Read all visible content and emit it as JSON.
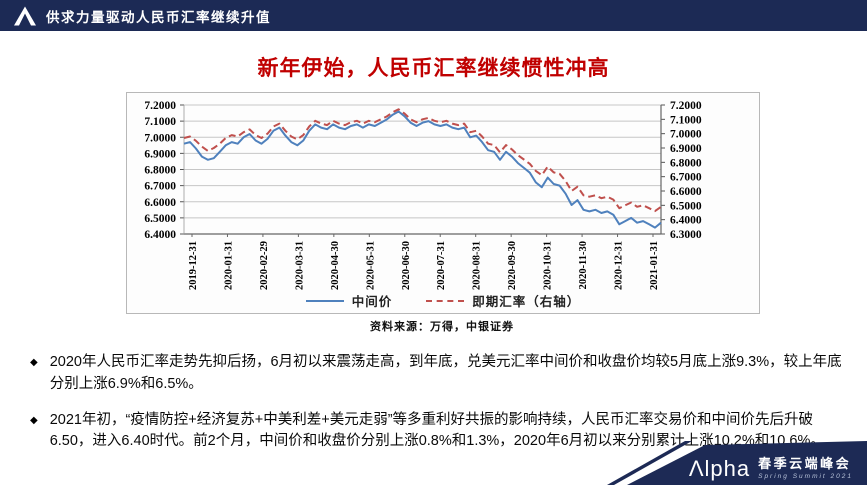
{
  "header": {
    "title": "供求力量驱动人民币汇率继续升值"
  },
  "slide": {
    "title": "新年伊始，人民币汇率继续惯性冲高"
  },
  "chart": {
    "source": "资料来源：万得，中银证券"
  },
  "chart_data": {
    "type": "line",
    "title": "新年伊始，人民币汇率继续惯性冲高",
    "x_tick_labels": [
      "2019-12-31",
      "2020-01-31",
      "2020-02-29",
      "2020-03-31",
      "2020-04-30",
      "2020-05-31",
      "2020-06-30",
      "2020-07-31",
      "2020-08-31",
      "2020-09-30",
      "2020-10-31",
      "2020-11-30",
      "2020-12-31",
      "2021-01-31"
    ],
    "left_axis": {
      "min": 6.4,
      "max": 7.2,
      "ticks": [
        "7.2000",
        "7.1000",
        "7.0000",
        "6.9000",
        "6.8000",
        "6.7000",
        "6.6000",
        "6.5000",
        "6.4000"
      ]
    },
    "right_axis": {
      "min": 6.3,
      "max": 7.2,
      "ticks": [
        "7.2000",
        "7.1000",
        "7.0000",
        "6.9000",
        "6.8000",
        "6.7000",
        "6.6000",
        "6.5000",
        "6.4000",
        "6.3000"
      ]
    },
    "grid": true,
    "legend_position": "bottom",
    "series": [
      {
        "name": "中间价",
        "axis": "left",
        "color": "#4f81bd",
        "style": "solid",
        "values": [
          6.96,
          6.97,
          6.93,
          6.88,
          6.86,
          6.87,
          6.91,
          6.95,
          6.97,
          6.96,
          7.0,
          7.02,
          6.98,
          6.96,
          6.99,
          7.04,
          7.06,
          7.01,
          6.97,
          6.95,
          6.98,
          7.04,
          7.08,
          7.06,
          7.05,
          7.08,
          7.06,
          7.05,
          7.07,
          7.08,
          7.06,
          7.08,
          7.07,
          7.09,
          7.11,
          7.14,
          7.16,
          7.13,
          7.09,
          7.07,
          7.09,
          7.1,
          7.08,
          7.07,
          7.08,
          7.06,
          7.05,
          7.06,
          7.0,
          7.01,
          6.97,
          6.92,
          6.91,
          6.86,
          6.91,
          6.88,
          6.84,
          6.81,
          6.78,
          6.72,
          6.69,
          6.75,
          6.71,
          6.7,
          6.65,
          6.58,
          6.61,
          6.55,
          6.54,
          6.55,
          6.53,
          6.54,
          6.52,
          6.46,
          6.48,
          6.5,
          6.47,
          6.48,
          6.46,
          6.44,
          6.47
        ]
      },
      {
        "name": "即期汇率（右轴）",
        "axis": "right",
        "color": "#c0504d",
        "style": "dashed",
        "values": [
          6.97,
          6.98,
          6.95,
          6.91,
          6.88,
          6.9,
          6.93,
          6.97,
          6.99,
          6.98,
          7.01,
          7.03,
          6.99,
          6.97,
          7.0,
          7.05,
          7.07,
          7.02,
          6.98,
          6.96,
          6.99,
          7.05,
          7.09,
          7.07,
          7.06,
          7.09,
          7.07,
          7.06,
          7.08,
          7.09,
          7.07,
          7.09,
          7.08,
          7.1,
          7.12,
          7.15,
          7.17,
          7.14,
          7.1,
          7.08,
          7.1,
          7.11,
          7.09,
          7.08,
          7.09,
          7.07,
          7.06,
          7.07,
          7.01,
          7.02,
          6.98,
          6.93,
          6.92,
          6.87,
          6.92,
          6.89,
          6.85,
          6.82,
          6.79,
          6.74,
          6.71,
          6.77,
          6.73,
          6.72,
          6.67,
          6.6,
          6.63,
          6.57,
          6.56,
          6.57,
          6.55,
          6.56,
          6.54,
          6.48,
          6.5,
          6.52,
          6.49,
          6.5,
          6.48,
          6.46,
          6.49
        ]
      }
    ]
  },
  "bullets": [
    {
      "marker": "◆",
      "text": "2020年人民币汇率走势先抑后扬，6月初以来震荡走高，到年底，兑美元汇率中间价和收盘价均较5月底上涨9.3%，较上年底分别上涨6.9%和6.5%。"
    },
    {
      "marker": "◆",
      "text": "2021年初，“疫情防控+经济复苏+中美利差+美元走弱”等多重利好共振的影响持续，人民币汇率交易价和中间价先后升破6.50，进入6.40时代。前2个月，中间价和收盘价分别上涨0.8%和1.3%，2020年6月初以来分别累计上涨10.2%和10.6%。"
    }
  ],
  "footer": {
    "brand_first": "Λ",
    "brand_rest": "lpha",
    "event_cn": "春季云端峰会",
    "event_en": "Spring Summit 2021"
  },
  "colors": {
    "header_bg": "#1c2a55",
    "title_red": "#c00000",
    "line_blue": "#4f81bd",
    "line_red": "#c0504d",
    "banner_navy": "#1d2a55"
  }
}
